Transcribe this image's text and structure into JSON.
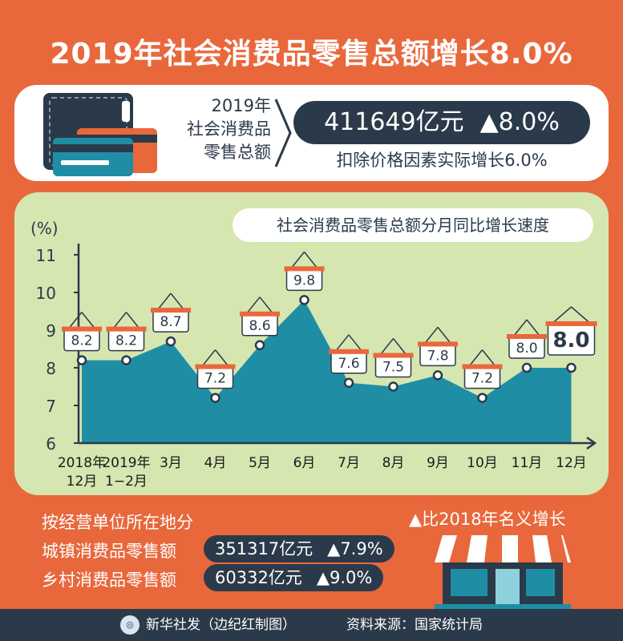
{
  "title": "2019年社会消费品零售总额增长8.0%",
  "summary": {
    "label_lines": [
      "2019年",
      "社会消费品",
      "零售总额"
    ],
    "total": "411649亿元",
    "growth": "▲8.0%",
    "real_growth": "扣除价格因素实际增长6.0%"
  },
  "chart_data": {
    "type": "area",
    "title": "社会消费品零售总额分月同比增长速度",
    "ylabel": "(%)",
    "ylim": [
      6,
      11
    ],
    "yticks": [
      6,
      7,
      8,
      9,
      10,
      11
    ],
    "categories": [
      "2018年\n12月",
      "2019年\n1−2月",
      "3月",
      "4月",
      "5月",
      "6月",
      "7月",
      "8月",
      "9月",
      "10月",
      "11月",
      "12月"
    ],
    "values": [
      8.2,
      8.2,
      8.7,
      7.2,
      8.6,
      9.8,
      7.6,
      7.5,
      7.8,
      7.2,
      8.0,
      8.0
    ],
    "labels": [
      "8.2",
      "8.2",
      "8.7",
      "7.2",
      "8.6",
      "9.8",
      "7.6",
      "7.5",
      "7.8",
      "7.2",
      "8.0",
      "8.0"
    ],
    "colors": {
      "area": "#1f8ea5",
      "sign": "#e8683c",
      "line": "#2b3a4a"
    }
  },
  "breakdown": {
    "heading": "按经营单位所在地分",
    "note": "▲比2018年名义增长",
    "rows": [
      {
        "label": "城镇消费品零售额",
        "amount": "351317亿元",
        "growth": "▲7.9%"
      },
      {
        "label": "乡村消费品零售额",
        "amount": "60332亿元",
        "growth": "▲9.0%"
      }
    ]
  },
  "footer": {
    "credit": "新华社发（边纪红制图）",
    "source": "资料来源：国家统计局"
  }
}
